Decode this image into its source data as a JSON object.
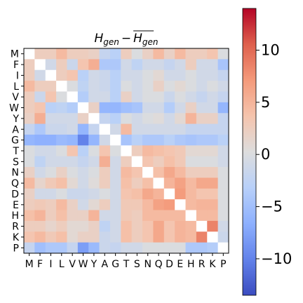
{
  "chart_data": {
    "type": "heatmap",
    "title": "H_gen − mean(H_gen)",
    "title_parts": {
      "base": "H",
      "sub": "gen",
      "minus": "−",
      "bar_base": "H",
      "bar_sub": "gen"
    },
    "labels": [
      "M",
      "F",
      "I",
      "L",
      "V",
      "W",
      "Y",
      "A",
      "G",
      "T",
      "S",
      "N",
      "Q",
      "D",
      "E",
      "H",
      "R",
      "K",
      "P"
    ],
    "colormap": "coolwarm",
    "vmin": -13.5,
    "vmax": 14,
    "colorbar_ticks": [
      -10,
      -5,
      0,
      5,
      10
    ],
    "colorbar_tick_labels": [
      "−10",
      "−5",
      "0",
      "5",
      "10"
    ],
    "values": [
      [
        0.0,
        2.5,
        2.5,
        4.5,
        2.5,
        2.5,
        2.0,
        -2.0,
        -3.0,
        2.5,
        0.0,
        2.0,
        4.5,
        2.0,
        4.5,
        2.5,
        2.5,
        3.5,
        0.0
      ],
      [
        2.5,
        0.0,
        -1.0,
        2.5,
        -1.5,
        3.5,
        5.5,
        -4.0,
        -4.0,
        -1.0,
        -2.5,
        -1.0,
        -1.0,
        -2.0,
        -1.0,
        2.5,
        -1.0,
        -1.0,
        -4.5
      ],
      [
        2.5,
        -1.0,
        0.0,
        2.5,
        3.5,
        -3.0,
        -1.0,
        -1.5,
        -3.0,
        -1.0,
        -1.0,
        0.0,
        1.0,
        -1.0,
        -1.0,
        0.0,
        -1.0,
        -1.0,
        -2.0
      ],
      [
        4.5,
        2.5,
        2.5,
        0.0,
        0.0,
        -2.5,
        -1.0,
        -1.5,
        -3.0,
        0.0,
        -1.0,
        0.0,
        2.0,
        0.0,
        1.0,
        0.0,
        -1.0,
        0.0,
        -1.0
      ],
      [
        2.5,
        -1.5,
        3.5,
        0.0,
        0.0,
        -3.5,
        -1.0,
        -1.0,
        -3.0,
        2.0,
        -1.0,
        0.0,
        0.0,
        -1.5,
        0.0,
        -1.0,
        -2.0,
        -1.0,
        -2.0
      ],
      [
        2.5,
        3.5,
        -3.0,
        -2.5,
        -3.5,
        0.0,
        2.0,
        -6.0,
        -6.0,
        -5.0,
        -4.5,
        -1.0,
        -1.0,
        -3.5,
        -1.0,
        2.0,
        -1.0,
        -1.0,
        -6.0
      ],
      [
        2.0,
        5.5,
        -1.0,
        -1.0,
        -1.0,
        2.0,
        0.0,
        -2.0,
        -3.0,
        0.0,
        -1.0,
        0.0,
        0.5,
        -1.0,
        1.0,
        5.0,
        2.0,
        2.0,
        -2.0
      ],
      [
        -2.0,
        -4.0,
        -1.5,
        -1.5,
        -1.0,
        -6.0,
        -2.0,
        0.0,
        -1.0,
        4.5,
        -1.0,
        -1.0,
        -1.0,
        -1.0,
        -1.0,
        -2.0,
        -2.0,
        -2.0,
        -2.0
      ],
      [
        -6.0,
        -6.5,
        -6.5,
        -5.5,
        -6.0,
        -10.0,
        -6.0,
        -1.0,
        0.0,
        -4.5,
        -3.0,
        -4.0,
        -4.0,
        -3.0,
        -4.0,
        -4.5,
        -4.0,
        -4.0,
        -3.0
      ],
      [
        0.0,
        -1.0,
        -1.0,
        0.0,
        3.5,
        -3.0,
        0.0,
        3.5,
        0.0,
        0.0,
        2.5,
        4.5,
        4.0,
        3.5,
        3.0,
        1.0,
        1.0,
        1.0,
        -1.0
      ],
      [
        0.0,
        -2.5,
        -1.0,
        -1.0,
        -1.0,
        -2.0,
        -1.0,
        5.5,
        -1.0,
        2.5,
        0.0,
        3.5,
        2.5,
        4.0,
        3.0,
        0.0,
        0.0,
        0.0,
        -1.0
      ],
      [
        2.0,
        -1.0,
        0.0,
        2.0,
        0.0,
        -1.0,
        0.0,
        2.5,
        -1.0,
        4.5,
        3.5,
        0.0,
        4.0,
        6.0,
        4.5,
        2.5,
        2.5,
        2.5,
        0.0
      ],
      [
        4.5,
        1.5,
        3.0,
        4.0,
        1.0,
        -1.0,
        0.5,
        2.5,
        -1.0,
        4.0,
        2.5,
        4.0,
        0.0,
        5.0,
        6.5,
        4.5,
        6.0,
        6.0,
        0.0
      ],
      [
        2.0,
        -1.0,
        -1.0,
        0.0,
        -1.5,
        -1.5,
        -1.0,
        0.0,
        -1.0,
        3.5,
        4.0,
        6.0,
        5.0,
        0.0,
        7.0,
        4.5,
        3.5,
        3.5,
        0.0
      ],
      [
        2.5,
        3.0,
        2.5,
        4.5,
        2.0,
        -1.0,
        1.0,
        2.5,
        -1.0,
        3.0,
        3.0,
        4.5,
        6.5,
        7.0,
        0.0,
        4.5,
        5.0,
        5.0,
        0.0
      ],
      [
        4.0,
        5.0,
        2.5,
        4.0,
        2.0,
        2.0,
        5.0,
        -1.0,
        -1.0,
        3.0,
        2.5,
        4.5,
        4.5,
        4.5,
        4.5,
        0.0,
        4.5,
        4.5,
        0.0
      ],
      [
        2.5,
        2.5,
        1.5,
        2.5,
        1.0,
        1.0,
        2.0,
        -2.5,
        -1.0,
        4.0,
        2.5,
        3.5,
        6.0,
        3.5,
        5.0,
        4.5,
        0.0,
        8.5,
        -1.0
      ],
      [
        3.5,
        4.5,
        3.0,
        4.0,
        1.0,
        2.0,
        2.0,
        -1.5,
        -1.0,
        4.0,
        2.5,
        3.5,
        6.0,
        3.5,
        5.0,
        4.5,
        8.5,
        0.0,
        -1.5
      ],
      [
        -2.0,
        -5.0,
        -4.0,
        -4.0,
        -2.0,
        -8.0,
        -5.5,
        -1.5,
        -2.0,
        -1.0,
        -1.0,
        0.0,
        0.0,
        0.0,
        0.0,
        -4.0,
        -4.0,
        -3.5,
        0.0
      ]
    ]
  }
}
